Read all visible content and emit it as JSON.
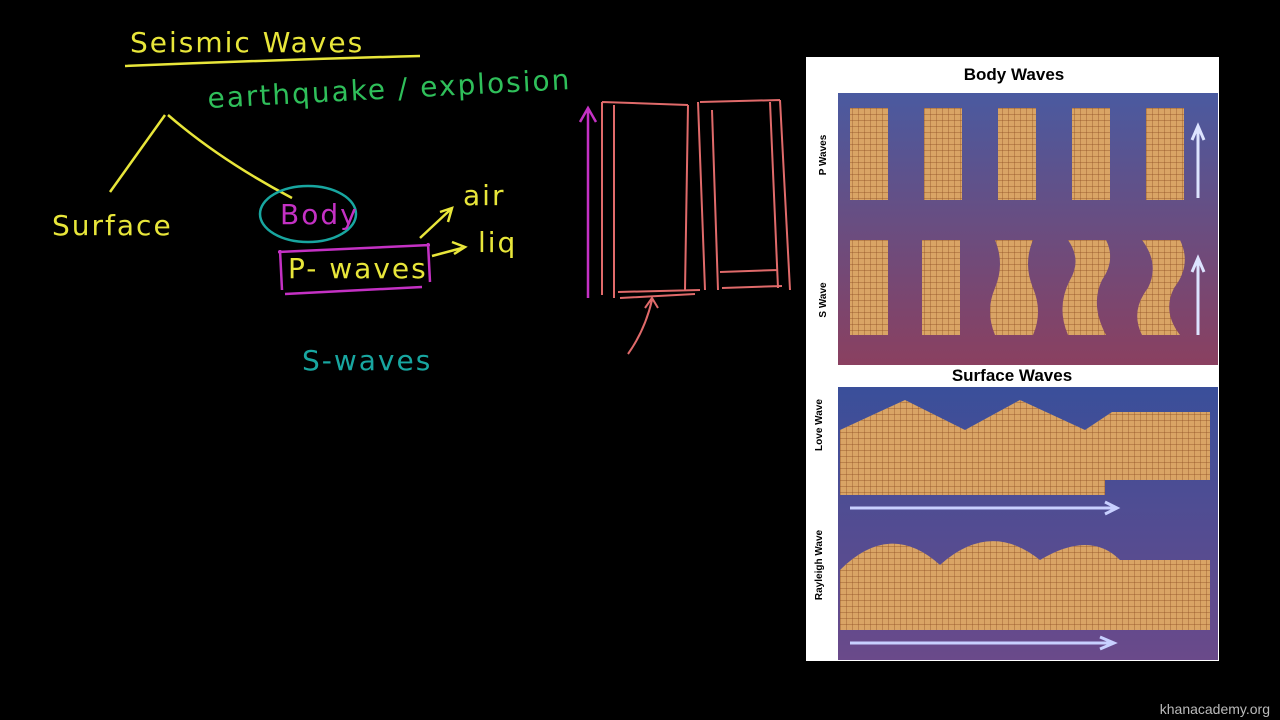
{
  "board": {
    "title": "Seismic Waves",
    "source": "earthquake / explosion",
    "surface": "Surface",
    "body": "Body",
    "p_waves": "P- waves",
    "air": "air",
    "liquid": "liq",
    "s_waves": "S-waves"
  },
  "figure": {
    "body_heading": "Body Waves",
    "p_label": "P Waves",
    "s_label": "S Wave",
    "surface_heading": "Surface Waves",
    "love_label": "Love Wave",
    "rayleigh_label": "Rayleigh Wave"
  },
  "watermark": "khanacademy.org"
}
